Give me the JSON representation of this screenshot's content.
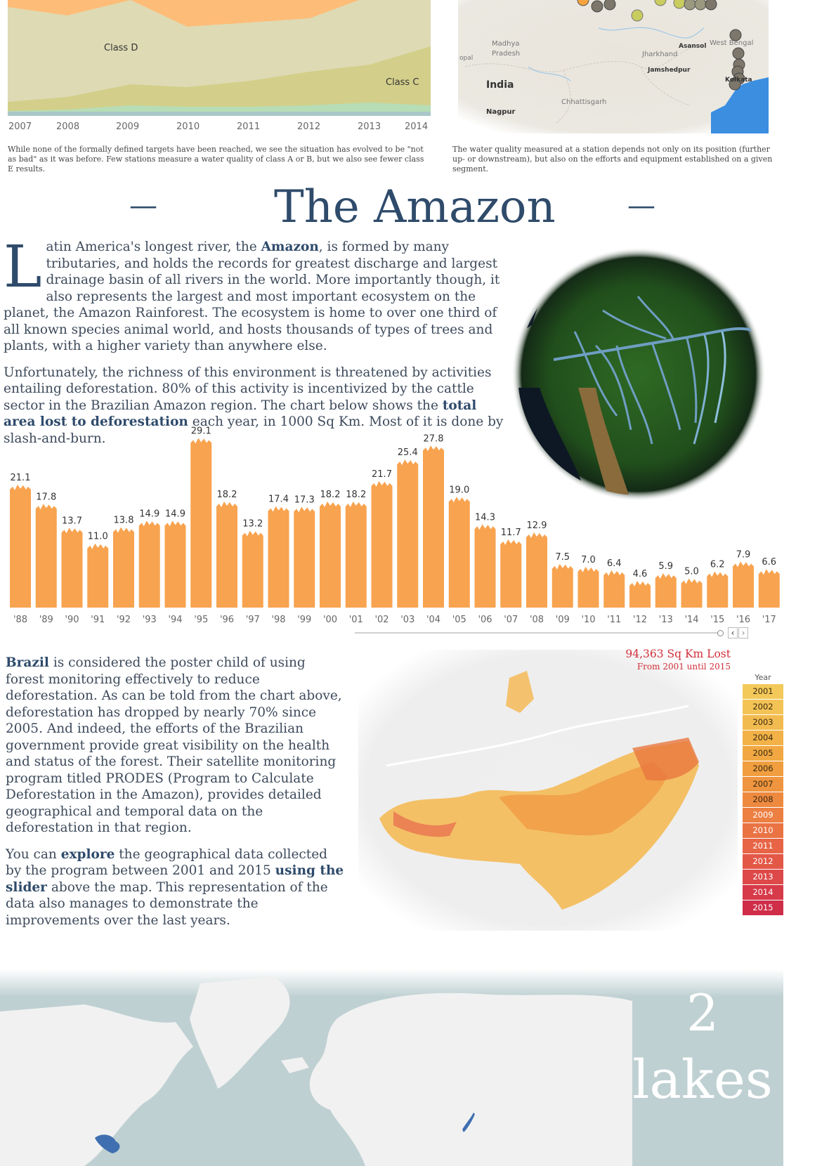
{
  "area_chart": {
    "class_labels": [
      "Class D",
      "Class C"
    ],
    "years": [
      "2007",
      "2008",
      "2009",
      "2010",
      "2011",
      "2012",
      "2013",
      "2014"
    ],
    "caption": "While none of the formally defined targets have been reached, we see the situation has evolved to be \"not as bad\" as it was before. Few stations measure a water quality of class A or B, but we also see fewer class E results."
  },
  "india_map": {
    "labels": [
      "Madhya Pradesh",
      "Jharkhand",
      "Asansol",
      "West Bengal",
      "Jamshedpur",
      "India",
      "Chhattisgarh",
      "Nagpur",
      "Kolkata",
      "opal"
    ],
    "caption": "The water quality measured at a station depends not only on its position (further up- or downstream), but also on the efforts and equipment established on a given segment."
  },
  "section": {
    "title": "The Amazon",
    "dash": "—"
  },
  "intro": {
    "dropcap": "L",
    "p1_a": "atin America's longest river, the ",
    "p1_bold": "Amazon",
    "p1_b": ", is formed by many tributaries, and holds the records for greatest discharge and largest drainage basin of all rivers in the world. More importantly though, it also represents the largest and most important ecosystem on the planet, the Amazon Rainforest. The ecosystem is home to over one third of all known species animal world, and hosts thousands of types of trees and plants, with a higher variety than anywhere else.",
    "p2_a": "Unfortunately, the richness of this environment is threatened by activities entailing deforestation. 80% of this activity is incentivized by the cattle sector in the Brazilian Amazon region. The chart below shows the ",
    "p2_bold": "total area lost to deforestation",
    "p2_b": " each year, in 1000 Sq Km. Most of it is done by slash-and-burn."
  },
  "chart_data": {
    "type": "bar",
    "categories": [
      "'88",
      "'89",
      "'90",
      "'91",
      "'92",
      "'93",
      "'94",
      "'95",
      "'96",
      "'97",
      "'98",
      "'99",
      "'00",
      "'01",
      "'02",
      "'03",
      "'04",
      "'05",
      "'06",
      "'07",
      "'08",
      "'09",
      "'10",
      "'11",
      "'12",
      "'13",
      "'14",
      "'15",
      "'16",
      "'17"
    ],
    "values": [
      21.1,
      17.8,
      13.7,
      11.0,
      13.8,
      14.9,
      14.9,
      29.1,
      18.2,
      13.2,
      17.4,
      17.3,
      18.2,
      18.2,
      21.7,
      25.4,
      27.8,
      19.0,
      14.3,
      11.7,
      12.9,
      7.5,
      7.0,
      6.4,
      4.6,
      5.9,
      5.0,
      6.2,
      7.9,
      6.6
    ],
    "labels": [
      "21.1",
      "17.8",
      "13.7",
      "11.0",
      "13.8",
      "14.9",
      "14.9",
      "29.1",
      "18.2",
      "13.2",
      "17.4",
      "17.3",
      "18.2",
      "18.2",
      "21.7",
      "25.4",
      "27.8",
      "19.0",
      "14.3",
      "11.7",
      "12.9",
      "7.5",
      "7.0",
      "6.4",
      "4.6",
      "5.9",
      "5.0",
      "6.2",
      "7.9",
      "6.6"
    ],
    "title": "",
    "xlabel": "",
    "ylabel": "",
    "color": "#f8a34f",
    "grid": false
  },
  "brazil": {
    "p1_bold": "Brazil",
    "p1_b": " is considered the poster child of using forest monitoring effectively to reduce deforestation. As can be told from the chart above, deforestation has dropped by nearly 70% since 2005. And indeed, the efforts of the Brazilian government provide great visibility on the health and status of the forest. Their satellite monitoring program titled PRODES (Program to Calculate Deforestation in the Amazon), provides detailed geographical and temporal data on the deforestation in that region.",
    "p2_a": "You can ",
    "p2_bold1": "explore",
    "p2_b": " the geographical data collected by the program between 2001 and 2015 ",
    "p2_bold2": "using the slider",
    "p2_c": " above the map. This representation of the data also manages to demonstrate the improvements over the last years."
  },
  "map_panel": {
    "lost_value": "94,363 Sq Km Lost",
    "lost_range": "From 2001 until 2015",
    "legend_title": "Year",
    "legend_years": [
      "2001",
      "2002",
      "2003",
      "2004",
      "2005",
      "2006",
      "2007",
      "2008",
      "2009",
      "2010",
      "2011",
      "2012",
      "2013",
      "2014",
      "2015"
    ],
    "legend_colors": [
      "#f3c95a",
      "#f3c355",
      "#f2bb4f",
      "#f2b248",
      "#f1a842",
      "#f09e3f",
      "#ef943f",
      "#ee8a40",
      "#ec7f42",
      "#ea7344",
      "#e76546",
      "#e35747",
      "#dd4848",
      "#d73a49",
      "#cf2d48"
    ]
  },
  "slider": {
    "prev": "‹",
    "next": "›"
  },
  "lakes": {
    "number": "2",
    "word": "lakes"
  }
}
